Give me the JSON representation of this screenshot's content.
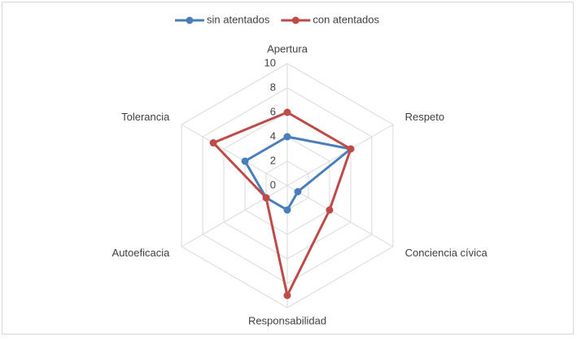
{
  "chart_data": {
    "type": "radar",
    "categories": [
      "Apertura",
      "Respeto",
      "Conciencia cívica",
      "Responsabilidad",
      "Autoeficacia",
      "Tolerancia"
    ],
    "series": [
      {
        "name": "sin atentados",
        "color": "#4a7ebb",
        "values": [
          4,
          6,
          1,
          2,
          2,
          4
        ]
      },
      {
        "name": "con atentados",
        "color": "#be4b48",
        "values": [
          6,
          6,
          4,
          9,
          2,
          7
        ]
      }
    ],
    "ylim": [
      0,
      10
    ],
    "yticks": [
      0,
      2,
      4,
      6,
      8,
      10
    ],
    "grid": true,
    "legend": "top"
  }
}
